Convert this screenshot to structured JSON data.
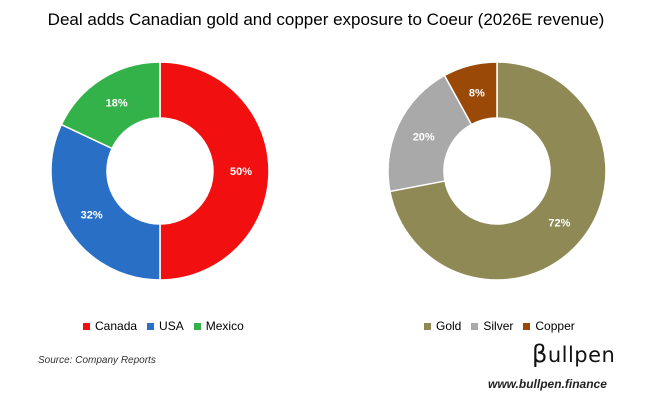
{
  "title": "Deal adds Canadian gold and copper exposure to Coeur (2026E revenue)",
  "chart_data": [
    {
      "type": "pie",
      "donut": true,
      "title": "",
      "categories": [
        "Canada",
        "USA",
        "Mexico"
      ],
      "values": [
        50,
        32,
        18
      ],
      "labels": [
        "50%",
        "32%",
        "18%"
      ],
      "colors": [
        "#f20f0f",
        "#2a6fc6",
        "#33b24a"
      ],
      "legend": {
        "position": "bottom",
        "entries": [
          "Canada",
          "USA",
          "Mexico"
        ]
      }
    },
    {
      "type": "pie",
      "donut": true,
      "title": "",
      "categories": [
        "Gold",
        "Silver",
        "Copper"
      ],
      "values": [
        72,
        20,
        8
      ],
      "labels": [
        "72%",
        "20%",
        "8%"
      ],
      "colors": [
        "#8f8a55",
        "#a9a9a9",
        "#9a4a06"
      ],
      "legend": {
        "position": "bottom",
        "entries": [
          "Gold",
          "Silver",
          "Copper"
        ]
      }
    }
  ],
  "source": "Source: Company Reports",
  "brand": {
    "logo_beta": "β",
    "logo_rest": "ullpen",
    "website": "www.bullpen.finance"
  }
}
